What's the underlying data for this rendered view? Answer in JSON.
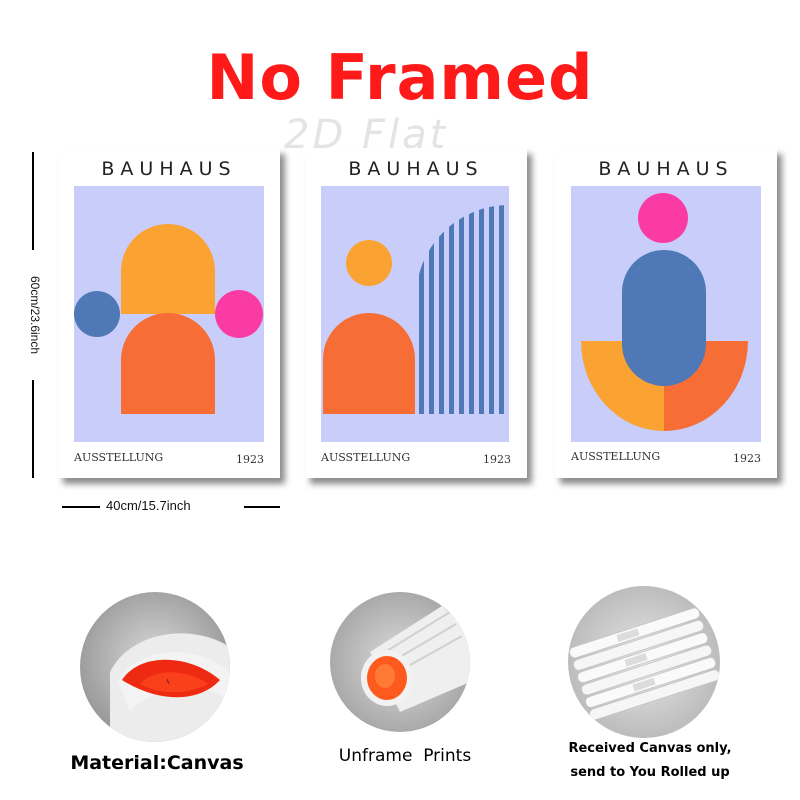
{
  "headline": "No Framed",
  "watermark": "2D Flat",
  "posters": [
    {
      "title": "BAUHAUS",
      "subtitle_left": "AUSSTELLUNG",
      "subtitle_right": "1923"
    },
    {
      "title": "BAUHAUS",
      "subtitle_left": "AUSSTELLUNG",
      "subtitle_right": "1923"
    },
    {
      "title": "BAUHAUS",
      "subtitle_left": "AUSSTELLUNG",
      "subtitle_right": "1923"
    }
  ],
  "dimensions": {
    "height": "60cm/23.6inch",
    "width": "40cm/15.7inch"
  },
  "details": [
    {
      "caption": "Material:Canvas"
    },
    {
      "caption": "Unframe  Prints"
    },
    {
      "caption_line1": "Received Canvas only,",
      "caption_line2": "send to You Rolled up"
    }
  ],
  "colors": {
    "headline": "#ff1a1a",
    "poster_background": "#c8cdfa",
    "orange": "#fba332",
    "red_orange": "#f76d36",
    "blue": "#4f78b6",
    "pink": "#fb3ba4"
  }
}
